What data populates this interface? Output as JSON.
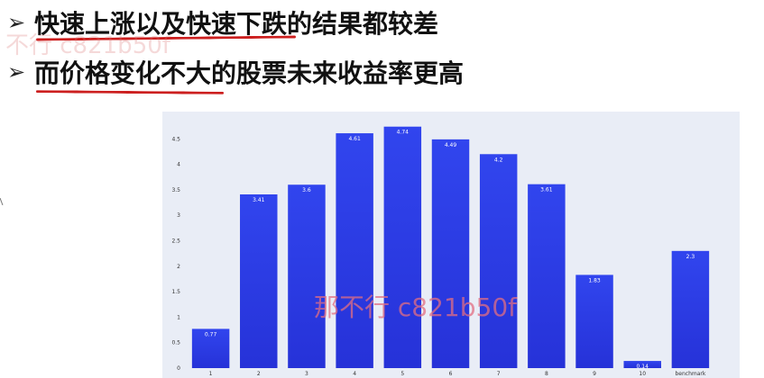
{
  "bullets": [
    {
      "marker": "➢",
      "text": "快速上涨以及快速下跌的结果都较差"
    },
    {
      "marker": "➢",
      "text": "而价格变化不大的股票未来收益率更高"
    }
  ],
  "watermarks": [
    "不行 c821b50f",
    "那不行 c821b50f"
  ],
  "colors": {
    "bar": "#3145ee",
    "bar_bottom": "#2632d8",
    "panel": "#e9edf6",
    "underline": "#cc1f1f"
  },
  "chart_data": {
    "type": "bar",
    "categories": [
      "1",
      "2",
      "3",
      "4",
      "5",
      "6",
      "7",
      "8",
      "9",
      "10",
      "benchmark"
    ],
    "values": [
      0.77,
      3.41,
      3.6,
      4.61,
      4.74,
      4.49,
      4.2,
      3.61,
      1.83,
      0.14,
      2.3
    ],
    "value_labels": [
      "0.77",
      "3.41",
      "3.6",
      "4.61",
      "4.74",
      "4.49",
      "4.2",
      "3.61",
      "1.83",
      "0.14",
      "2.3"
    ],
    "y_ticks": [
      0,
      0.5,
      1,
      1.5,
      2,
      2.5,
      3,
      3.5,
      4,
      4.5
    ],
    "y_tick_labels": [
      "0",
      "0.5",
      "1",
      "1.5",
      "2",
      "2.5",
      "3",
      "3.5",
      "4",
      "4.5"
    ],
    "ylim": [
      0,
      5
    ],
    "title": "",
    "xlabel": "",
    "ylabel": "",
    "grid": false,
    "legend": "none"
  }
}
